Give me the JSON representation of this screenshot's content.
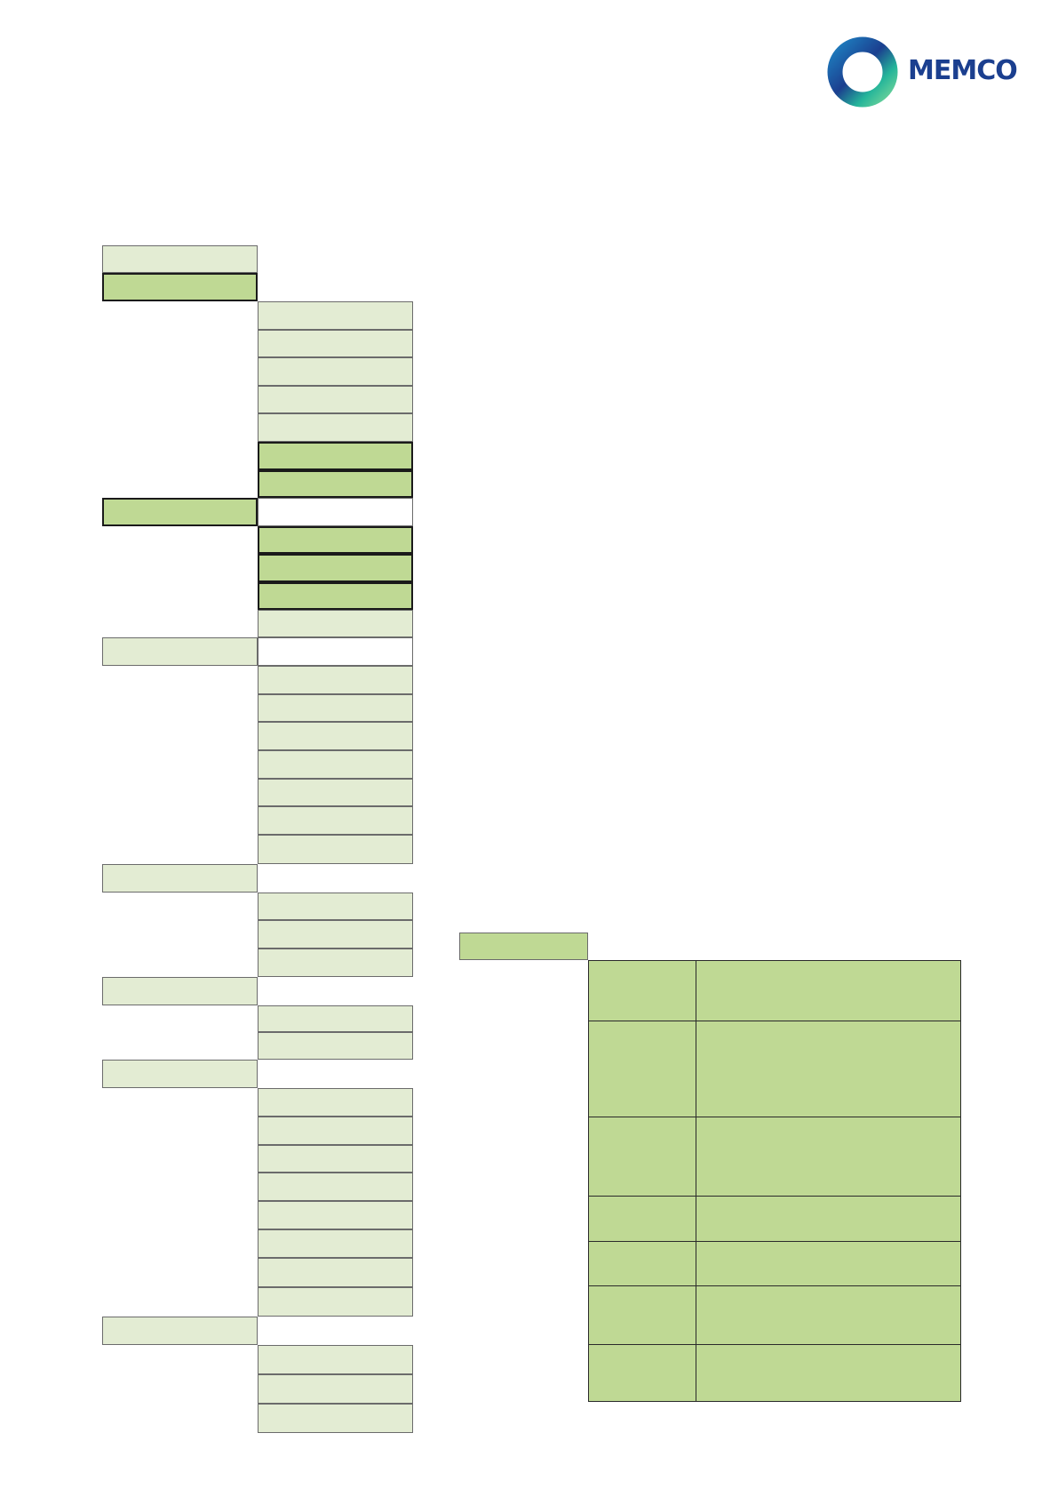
{
  "logo": {
    "text": "MEMCO",
    "text_color": "#1b3f8f",
    "ring_colors": [
      "#1b3f8f",
      "#1e7fc0",
      "#25b59a",
      "#6fd39a"
    ]
  },
  "colors": {
    "light_green": "#e3ecd3",
    "medium_green": "#bfd994",
    "border": "#6b6b6b"
  }
}
